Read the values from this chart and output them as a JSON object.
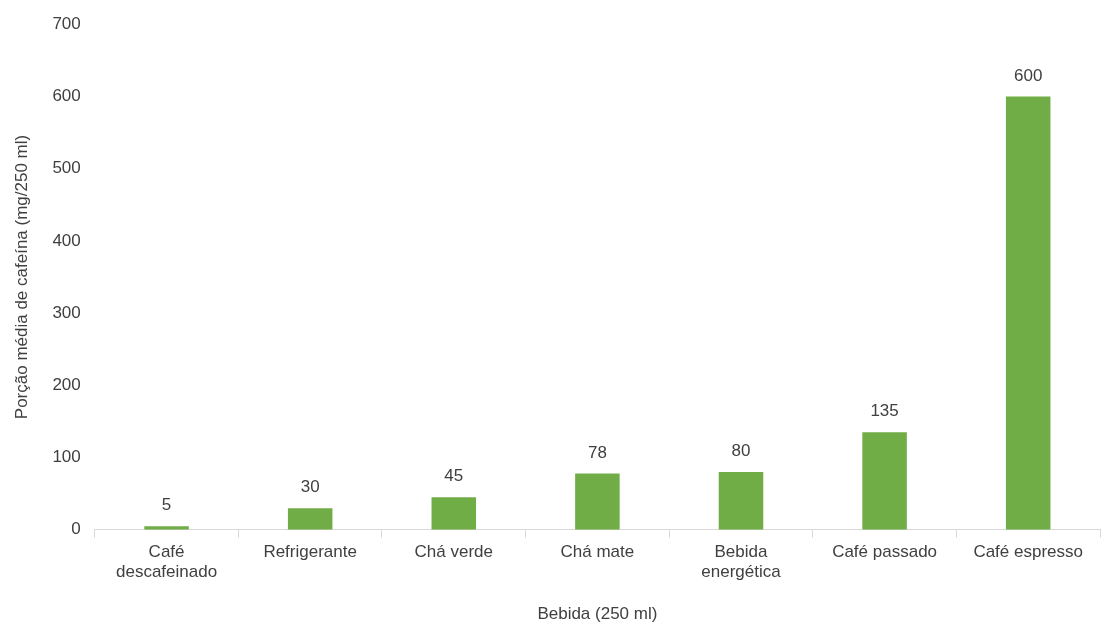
{
  "chart_data": {
    "type": "bar",
    "xlabel": "Bebida (250 ml)",
    "ylabel": "Porção média de cafeína (mg/250 ml)",
    "categories": [
      "Café descafeinado",
      "Refrigerante",
      "Chá verde",
      "Chá mate",
      "Bebida energética",
      "Café passado",
      "Café espresso"
    ],
    "values": [
      5,
      30,
      45,
      78,
      80,
      135,
      600
    ],
    "color": "#70ad47",
    "ylim": [
      0,
      700
    ],
    "yticks": [
      0,
      100,
      200,
      300,
      400,
      500,
      600,
      700
    ],
    "grid": false,
    "legend": false,
    "data_labels": true
  }
}
